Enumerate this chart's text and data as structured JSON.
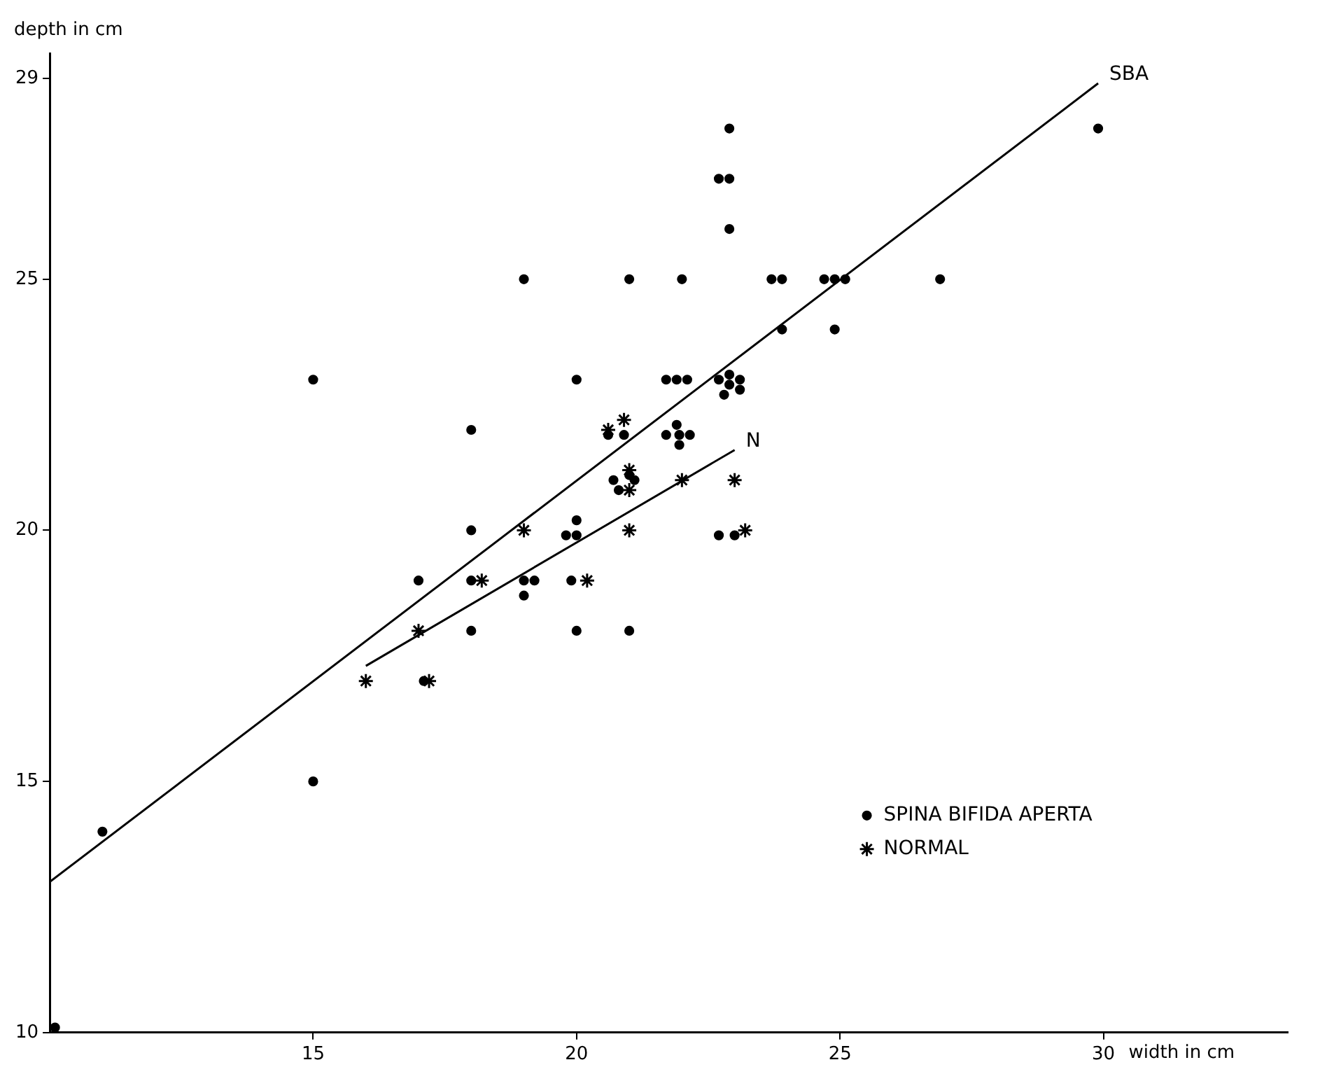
{
  "chart_data": {
    "type": "scatter",
    "xlabel": "width in cm",
    "ylabel": "depth in cm",
    "xlim": [
      10,
      33.5
    ],
    "ylim": [
      10,
      29.5
    ],
    "xticks": [
      15,
      20,
      25,
      30
    ],
    "yticks": [
      10,
      15,
      20,
      25,
      29
    ],
    "grid": false,
    "legend": "bottom right",
    "series": [
      {
        "name": "SPINA BIFIDA APERTA",
        "color": "#000000",
        "marker": "circle",
        "x": [
          10.1,
          11,
          15,
          15,
          17,
          17.1,
          18,
          18,
          18,
          18,
          19,
          19,
          19.2,
          19,
          19.9,
          20,
          19.8,
          20,
          20,
          20,
          21,
          21,
          20.6,
          20.9,
          21.7,
          21.9,
          22.1,
          21.9,
          21.7,
          21.95,
          22.15,
          21.95,
          20.7,
          21.1,
          20.8,
          21,
          22,
          22.7,
          22.9,
          22.9,
          22.9,
          23.7,
          23.9,
          24.7,
          24.9,
          25.1,
          26.9,
          23.9,
          24.9,
          29.9,
          22.9,
          22.7,
          22.9,
          23.1,
          22.8,
          23.1,
          22.7,
          23
        ],
        "values": [
          10.1,
          14,
          15,
          23,
          19,
          17,
          22,
          20,
          19,
          18,
          25,
          19,
          19,
          18.7,
          19,
          18,
          19.9,
          19.9,
          20.2,
          23,
          18,
          25,
          21.9,
          21.9,
          23,
          23,
          23,
          22.1,
          21.9,
          21.9,
          21.9,
          21.7,
          21,
          21,
          20.8,
          21.1,
          25,
          27,
          27,
          28,
          26,
          25,
          25,
          25,
          25,
          25,
          25,
          24,
          24,
          28,
          23.1,
          23,
          22.9,
          23,
          22.7,
          22.8,
          19.9,
          19.9
        ]
      },
      {
        "name": "NORMAL",
        "color": "#000000",
        "marker": "cross",
        "x": [
          16,
          17,
          17.2,
          18.2,
          19,
          20.2,
          20.6,
          20.9,
          21,
          21,
          21,
          22,
          23,
          23.2
        ],
        "values": [
          17,
          18,
          17,
          19,
          20,
          19,
          22,
          22.2,
          21.2,
          20.8,
          20,
          21,
          21,
          20
        ]
      },
      {
        "name": "SBA",
        "type": "line",
        "color": "#000000",
        "marker": "none",
        "x": [
          10,
          29.9
        ],
        "values": [
          13,
          28.9
        ]
      },
      {
        "name": "N",
        "type": "line",
        "color": "#000000",
        "marker": "none",
        "x": [
          16,
          23
        ],
        "values": [
          17.3,
          21.6
        ]
      }
    ]
  }
}
